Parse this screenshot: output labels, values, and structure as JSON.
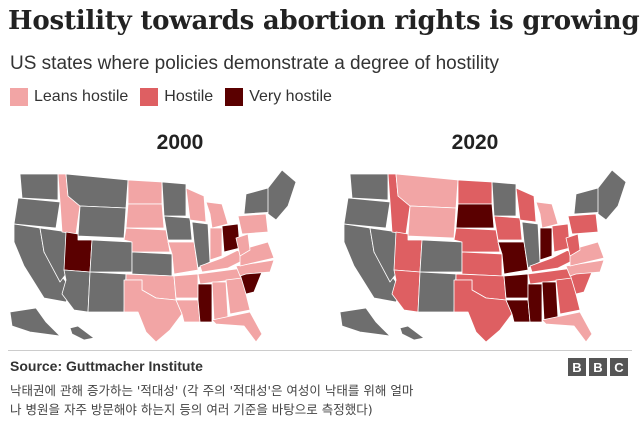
{
  "title": "Hostility towards abortion rights is growing",
  "subtitle": "US states where policies demonstrate a degree of hostility",
  "legend": [
    {
      "label": "Leans hostile",
      "color": "#f2a5a5"
    },
    {
      "label": "Hostile",
      "color": "#de5f62"
    },
    {
      "label": "Very hostile",
      "color": "#5a0000"
    }
  ],
  "colors": {
    "neutral": "#6e6e6e",
    "leans": "#f2a5a5",
    "hostile": "#de5f62",
    "very": "#5a0000"
  },
  "maps": [
    {
      "year": "2000",
      "levels": {
        "WA": "neutral",
        "OR": "neutral",
        "CA": "neutral",
        "NV": "neutral",
        "ID": "leans",
        "MT": "neutral",
        "WY": "neutral",
        "UT": "very",
        "AZ": "neutral",
        "CO": "neutral",
        "NM": "neutral",
        "ND": "leans",
        "SD": "leans",
        "NE": "leans",
        "KS": "neutral",
        "OK": "leans",
        "TX": "leans",
        "MN": "neutral",
        "IA": "neutral",
        "MO": "leans",
        "AR": "leans",
        "LA": "leans",
        "WI": "leans",
        "IL": "neutral",
        "MI": "leans",
        "IN": "leans",
        "OH": "very",
        "KY": "leans",
        "TN": "leans",
        "MS": "very",
        "AL": "leans",
        "GA": "leans",
        "FL": "leans",
        "SC": "very",
        "NC": "leans",
        "VA": "leans",
        "WV": "leans",
        "PA": "leans",
        "NY": "neutral",
        "NE_region": "neutral",
        "AK": "neutral",
        "HI": "neutral"
      }
    },
    {
      "year": "2020",
      "levels": {
        "WA": "neutral",
        "OR": "neutral",
        "CA": "neutral",
        "NV": "neutral",
        "ID": "hostile",
        "MT": "leans",
        "WY": "leans",
        "UT": "hostile",
        "AZ": "hostile",
        "CO": "neutral",
        "NM": "neutral",
        "ND": "hostile",
        "SD": "very",
        "NE": "hostile",
        "KS": "hostile",
        "OK": "hostile",
        "TX": "hostile",
        "MN": "neutral",
        "IA": "hostile",
        "MO": "very",
        "AR": "very",
        "LA": "very",
        "WI": "hostile",
        "IL": "neutral",
        "MI": "leans",
        "IN": "very",
        "OH": "hostile",
        "KY": "hostile",
        "TN": "hostile",
        "MS": "very",
        "AL": "very",
        "GA": "hostile",
        "FL": "leans",
        "SC": "hostile",
        "NC": "leans",
        "VA": "leans",
        "WV": "hostile",
        "PA": "hostile",
        "NY": "neutral",
        "NE_region": "neutral",
        "AK": "neutral",
        "HI": "neutral"
      }
    }
  ],
  "source": "Source: Guttmacher Institute",
  "brand": [
    "B",
    "B",
    "C"
  ],
  "caption_lines": [
    "낙태권에 관해 증가하는 '적대성' (각 주의 '적대성'은 여성이 낙태를 위해 얼마",
    "나 병원을 자주 방문해야 하는지 등의 여러 기준을 바탕으로 측정했다)"
  ]
}
